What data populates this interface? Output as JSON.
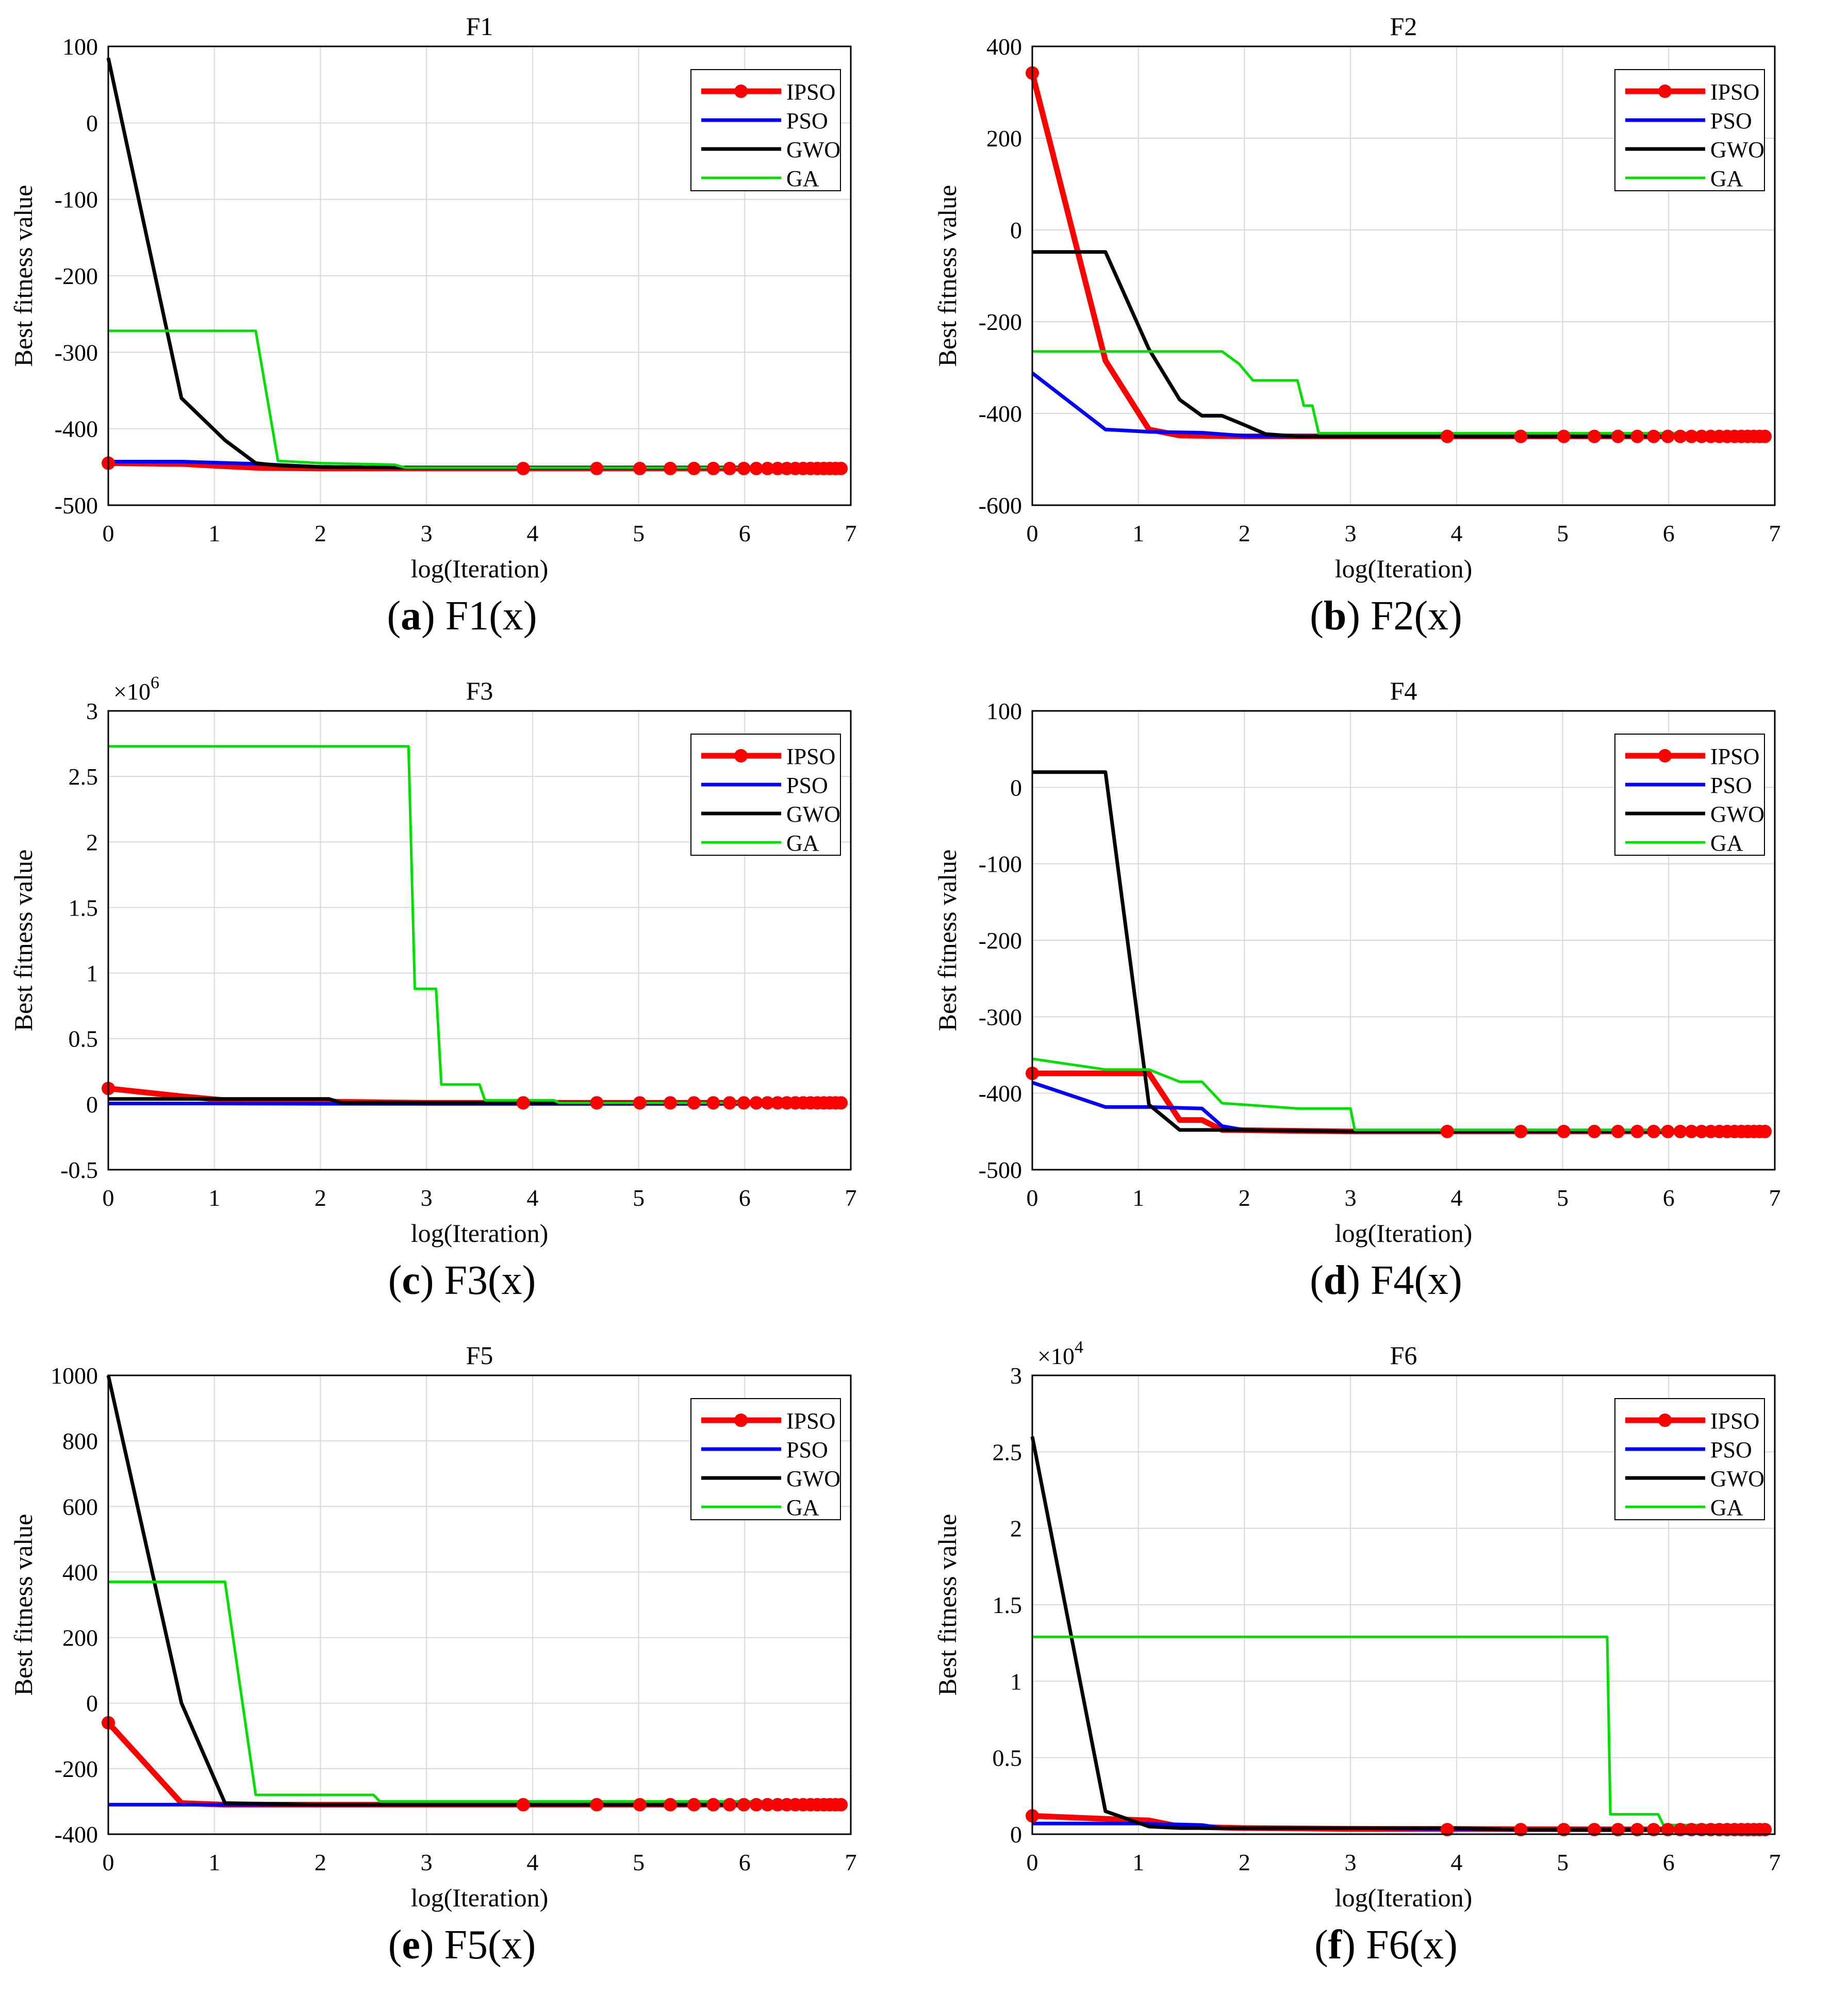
{
  "colors": {
    "IPSO": "#ff0000",
    "PSO": "#0000ff",
    "GWO": "#000000",
    "GA": "#00e000",
    "grid": "#d9d9d9"
  },
  "xlabel": "log(Iteration)",
  "ylabel": "Best fitness value",
  "chart_data": [
    {
      "type": "line",
      "id": "a",
      "title": "F1",
      "caption_letter": "a",
      "caption_text": " F1(x)",
      "xlabel": "log(Iteration)",
      "ylabel": "Best fitness value",
      "xlim": [
        0,
        7
      ],
      "ylim": [
        -500,
        100
      ],
      "xticks": [
        "0",
        "1",
        "2",
        "3",
        "4",
        "5",
        "6",
        "7"
      ],
      "yticks": [
        "100",
        "0",
        "-100",
        "-200",
        "-300",
        "-400",
        "-500"
      ],
      "exponent": "",
      "legend": [
        "IPSO",
        "PSO",
        "GWO",
        "GA"
      ],
      "series": [
        {
          "name": "IPSO",
          "x": [
            0,
            0.69,
            1.1,
            1.39,
            2,
            3,
            6.9
          ],
          "y": [
            -445,
            -446,
            -449,
            -451,
            -452,
            -452,
            -452
          ],
          "markers": true
        },
        {
          "name": "PSO",
          "x": [
            0,
            0.7,
            1.4,
            2,
            3,
            6.9
          ],
          "y": [
            -443,
            -443,
            -446,
            -450,
            -451,
            -451
          ]
        },
        {
          "name": "GWO",
          "x": [
            0,
            0.69,
            1.1,
            1.39,
            1.6,
            2,
            3,
            6.9
          ],
          "y": [
            85,
            -360,
            -415,
            -445,
            -448,
            -450,
            -451,
            -451
          ]
        },
        {
          "name": "GA",
          "x": [
            0,
            1.39,
            1.6,
            2,
            2.7,
            2.8,
            6.9
          ],
          "y": [
            -272,
            -272,
            -442,
            -445,
            -447,
            -451,
            -451
          ]
        }
      ]
    },
    {
      "type": "line",
      "id": "b",
      "title": "F2",
      "caption_letter": "b",
      "caption_text": " F2(x)",
      "xlabel": "log(Iteration)",
      "ylabel": "Best fitness value",
      "xlim": [
        0,
        7
      ],
      "ylim": [
        -600,
        400
      ],
      "xticks": [
        "0",
        "1",
        "2",
        "3",
        "4",
        "5",
        "6",
        "7"
      ],
      "yticks": [
        "400",
        "200",
        "0",
        "-200",
        "-400",
        "-600"
      ],
      "exponent": "",
      "legend": [
        "IPSO",
        "PSO",
        "GWO",
        "GA"
      ],
      "series": [
        {
          "name": "IPSO",
          "x": [
            0,
            0.69,
            1.1,
            1.39,
            2,
            3,
            6.9
          ],
          "y": [
            342,
            -285,
            -435,
            -448,
            -450,
            -450,
            -450
          ],
          "markers": true
        },
        {
          "name": "PSO",
          "x": [
            0,
            0.69,
            1.1,
            1.6,
            2,
            3,
            6.9
          ],
          "y": [
            -312,
            -435,
            -440,
            -442,
            -449,
            -450,
            -450
          ]
        },
        {
          "name": "GWO",
          "x": [
            0,
            0.69,
            1.1,
            1.39,
            1.6,
            1.79,
            2,
            2.2,
            2.5,
            3,
            6.9
          ],
          "y": [
            -48,
            -48,
            -260,
            -370,
            -405,
            -405,
            -425,
            -445,
            -450,
            -450,
            -450
          ]
        },
        {
          "name": "GA",
          "x": [
            0,
            1.79,
            1.95,
            2.08,
            2.5,
            2.56,
            2.64,
            2.7,
            3,
            6.9
          ],
          "y": [
            -265,
            -265,
            -292,
            -328,
            -328,
            -383,
            -383,
            -443,
            -443,
            -443
          ]
        }
      ]
    },
    {
      "type": "line",
      "id": "c",
      "title": "F3",
      "caption_letter": "c",
      "caption_text": " F3(x)",
      "xlabel": "log(Iteration)",
      "ylabel": "Best fitness value",
      "xlim": [
        0,
        7
      ],
      "ylim": [
        -0.5,
        3
      ],
      "xticks": [
        "0",
        "1",
        "2",
        "3",
        "4",
        "5",
        "6",
        "7"
      ],
      "yticks": [
        "3",
        "2.5",
        "2",
        "1.5",
        "1",
        "0.5",
        "0",
        "-0.5"
      ],
      "exponent": "×10",
      "exponent_power": "6",
      "legend": [
        "IPSO",
        "PSO",
        "GWO",
        "GA"
      ],
      "series": [
        {
          "name": "IPSO",
          "x": [
            0,
            0.69,
            1.1,
            2,
            3,
            6.9
          ],
          "y": [
            0.12,
            0.06,
            0.03,
            0.02,
            0.01,
            0.01
          ],
          "markers": true
        },
        {
          "name": "PSO",
          "x": [
            0,
            1,
            2,
            3,
            6.9
          ],
          "y": [
            0.005,
            0.005,
            0.003,
            0.002,
            0.002
          ]
        },
        {
          "name": "GWO",
          "x": [
            0,
            1.1,
            2.08,
            2.2,
            3,
            6.9
          ],
          "y": [
            0.04,
            0.04,
            0.04,
            0.01,
            0.01,
            0.01
          ]
        },
        {
          "name": "GA",
          "x": [
            0,
            2.83,
            2.89,
            3.09,
            3.14,
            3.5,
            3.55,
            4.2,
            4.25,
            6.9
          ],
          "y": [
            2.73,
            2.73,
            0.88,
            0.88,
            0.15,
            0.15,
            0.03,
            0.03,
            0.01,
            0.01
          ]
        }
      ]
    },
    {
      "type": "line",
      "id": "d",
      "title": "F4",
      "caption_letter": "d",
      "caption_text": " F4(x)",
      "xlabel": "log(Iteration)",
      "ylabel": "Best fitness value",
      "xlim": [
        0,
        7
      ],
      "ylim": [
        -500,
        100
      ],
      "xticks": [
        "0",
        "1",
        "2",
        "3",
        "4",
        "5",
        "6",
        "7"
      ],
      "yticks": [
        "100",
        "0",
        "-100",
        "-200",
        "-300",
        "-400",
        "-500"
      ],
      "exponent": "",
      "legend": [
        "IPSO",
        "PSO",
        "GWO",
        "GA"
      ],
      "series": [
        {
          "name": "IPSO",
          "x": [
            0,
            1.1,
            1.39,
            1.6,
            1.79,
            3,
            6.9
          ],
          "y": [
            -374,
            -374,
            -435,
            -435,
            -448,
            -450,
            -450
          ],
          "markers": true
        },
        {
          "name": "PSO",
          "x": [
            0,
            0.69,
            1.1,
            1.6,
            1.79,
            2,
            3,
            6.9
          ],
          "y": [
            -386,
            -418,
            -418,
            -420,
            -443,
            -448,
            -450,
            -450
          ]
        },
        {
          "name": "GWO",
          "x": [
            0,
            0.69,
            1.1,
            1.39,
            2,
            3,
            6.9
          ],
          "y": [
            20,
            20,
            -415,
            -448,
            -448,
            -450,
            -450
          ]
        },
        {
          "name": "GA",
          "x": [
            0,
            0.69,
            1.1,
            1.39,
            1.6,
            1.79,
            2,
            2.5,
            3,
            3.04,
            6.9
          ],
          "y": [
            -355,
            -369,
            -369,
            -385,
            -385,
            -413,
            -415,
            -420,
            -420,
            -448,
            -448
          ]
        }
      ]
    },
    {
      "type": "line",
      "id": "e",
      "title": "F5",
      "caption_letter": "e",
      "caption_text": " F5(x)",
      "xlabel": "log(Iteration)",
      "ylabel": "Best fitness value",
      "xlim": [
        0,
        7
      ],
      "ylim": [
        -400,
        1000
      ],
      "xticks": [
        "0",
        "1",
        "2",
        "3",
        "4",
        "5",
        "6",
        "7"
      ],
      "yticks": [
        "1000",
        "800",
        "600",
        "400",
        "200",
        "0",
        "-200",
        "-400"
      ],
      "exponent": "",
      "legend": [
        "IPSO",
        "PSO",
        "GWO",
        "GA"
      ],
      "series": [
        {
          "name": "IPSO",
          "x": [
            0,
            0.69,
            1.1,
            3,
            6.9
          ],
          "y": [
            -60,
            -305,
            -310,
            -310,
            -310
          ],
          "markers": true
        },
        {
          "name": "PSO",
          "x": [
            0,
            1,
            3,
            6.9
          ],
          "y": [
            -310,
            -310,
            -310,
            -310
          ]
        },
        {
          "name": "GWO",
          "x": [
            0,
            0.69,
            1.1,
            2,
            3,
            6.9
          ],
          "y": [
            1000,
            0,
            -305,
            -310,
            -310,
            -310
          ]
        },
        {
          "name": "GA",
          "x": [
            0,
            1.1,
            1.39,
            2.5,
            2.56,
            6.9
          ],
          "y": [
            370,
            370,
            -280,
            -280,
            -300,
            -300
          ]
        }
      ]
    },
    {
      "type": "line",
      "id": "f",
      "title": "F6",
      "caption_letter": "f",
      "caption_text": " F6(x)",
      "xlabel": "log(Iteration)",
      "ylabel": "Best fitness value",
      "xlim": [
        0,
        7
      ],
      "ylim": [
        0,
        3
      ],
      "xticks": [
        "0",
        "1",
        "2",
        "3",
        "4",
        "5",
        "6",
        "7"
      ],
      "yticks": [
        "3",
        "2.5",
        "2",
        "1.5",
        "1",
        "0.5",
        "0"
      ],
      "exponent": "×10",
      "exponent_power": "4",
      "legend": [
        "IPSO",
        "PSO",
        "GWO",
        "GA"
      ],
      "series": [
        {
          "name": "IPSO",
          "x": [
            0,
            0.69,
            1.1,
            1.39,
            2,
            3,
            6.9
          ],
          "y": [
            0.12,
            0.1,
            0.09,
            0.05,
            0.04,
            0.035,
            0.03
          ],
          "markers": true
        },
        {
          "name": "PSO",
          "x": [
            0,
            1,
            1.6,
            1.79,
            3,
            4.6,
            6.9
          ],
          "y": [
            0.07,
            0.07,
            0.06,
            0.04,
            0.04,
            0.03,
            0.03
          ]
        },
        {
          "name": "GWO",
          "x": [
            0,
            0.69,
            1.1,
            1.39,
            2,
            3,
            4,
            4.6,
            6.9
          ],
          "y": [
            2.6,
            0.15,
            0.05,
            0.04,
            0.04,
            0.04,
            0.04,
            0.03,
            0.03
          ]
        },
        {
          "name": "GA",
          "x": [
            0,
            5.42,
            5.45,
            5.9,
            5.95,
            6.9
          ],
          "y": [
            1.29,
            1.29,
            0.13,
            0.13,
            0.06,
            0.06
          ]
        }
      ]
    }
  ]
}
